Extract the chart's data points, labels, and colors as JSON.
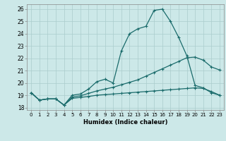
{
  "title": "",
  "xlabel": "Humidex (Indice chaleur)",
  "bg_color": "#cce8e8",
  "grid_color": "#aacccc",
  "line_color": "#1a6b6b",
  "xlim": [
    -0.5,
    23.5
  ],
  "ylim": [
    17.8,
    26.4
  ],
  "xticks": [
    0,
    1,
    2,
    3,
    4,
    5,
    6,
    7,
    8,
    9,
    10,
    11,
    12,
    13,
    14,
    15,
    16,
    17,
    18,
    19,
    20,
    21,
    22,
    23
  ],
  "yticks": [
    18,
    19,
    20,
    21,
    22,
    23,
    24,
    25,
    26
  ],
  "line1_x": [
    0,
    1,
    2,
    3,
    4,
    5,
    6,
    7,
    8,
    9,
    10,
    11,
    12,
    13,
    14,
    15,
    16,
    17,
    18,
    19,
    20,
    21,
    22,
    23
  ],
  "line1_y": [
    19.2,
    18.6,
    18.7,
    18.7,
    18.2,
    19.0,
    19.1,
    19.5,
    20.1,
    20.3,
    20.0,
    22.6,
    24.0,
    24.4,
    24.6,
    25.9,
    26.0,
    25.0,
    23.7,
    22.2,
    19.8,
    19.6,
    19.2,
    19.0
  ],
  "line2_x": [
    0,
    1,
    2,
    3,
    4,
    5,
    6,
    7,
    8,
    9,
    10,
    11,
    12,
    13,
    14,
    15,
    16,
    17,
    18,
    19,
    20,
    21,
    22,
    23
  ],
  "line2_y": [
    19.2,
    18.6,
    18.7,
    18.7,
    18.2,
    18.85,
    18.95,
    19.15,
    19.35,
    19.5,
    19.65,
    19.85,
    20.05,
    20.25,
    20.55,
    20.85,
    21.15,
    21.45,
    21.75,
    22.05,
    22.1,
    21.85,
    21.3,
    21.05
  ],
  "line3_x": [
    0,
    1,
    2,
    3,
    4,
    5,
    6,
    7,
    8,
    9,
    10,
    11,
    12,
    13,
    14,
    15,
    16,
    17,
    18,
    19,
    20,
    21,
    22,
    23
  ],
  "line3_y": [
    19.2,
    18.6,
    18.7,
    18.7,
    18.2,
    18.75,
    18.82,
    18.9,
    19.0,
    19.05,
    19.1,
    19.15,
    19.2,
    19.25,
    19.3,
    19.35,
    19.4,
    19.45,
    19.5,
    19.55,
    19.6,
    19.55,
    19.3,
    19.0
  ],
  "marker": "+",
  "markersize": 3,
  "linewidth": 0.9
}
